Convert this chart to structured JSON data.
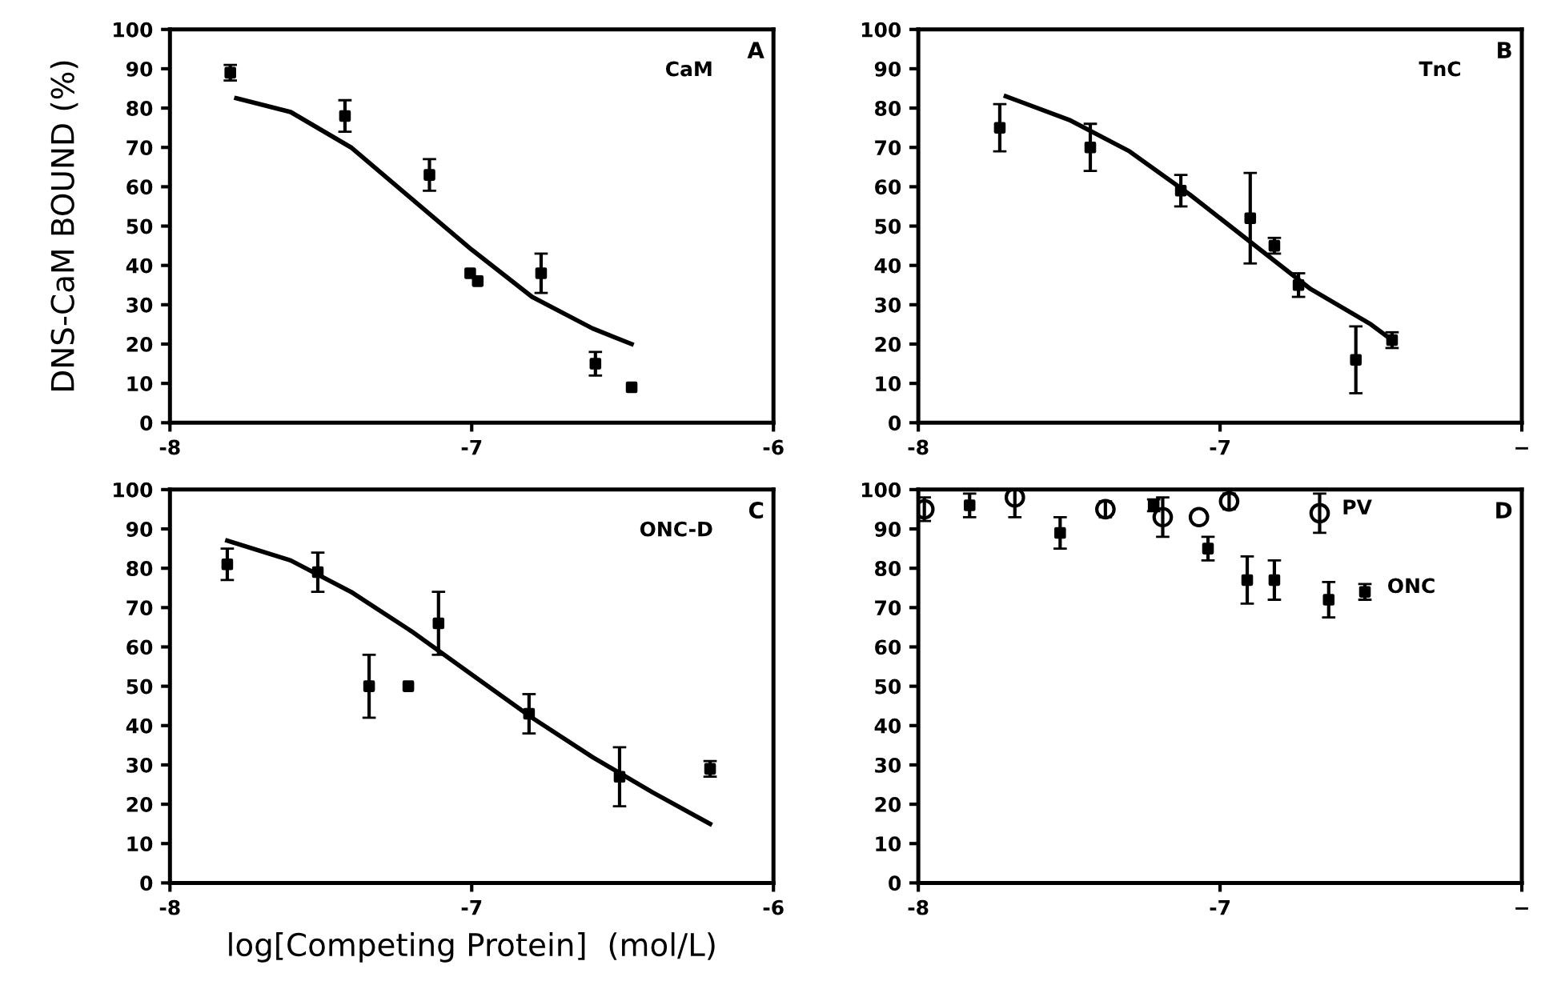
{
  "chart_data": [
    {
      "type": "scatter",
      "ylabel": "DNS-CaM BOUND (%)",
      "annotations": [
        "CaM",
        "A"
      ],
      "xlim": [
        -8,
        -6
      ],
      "xticks": [
        -8,
        -7,
        -6
      ],
      "ylim": [
        0,
        100
      ],
      "yticks": [
        0,
        10,
        20,
        30,
        40,
        50,
        60,
        70,
        80,
        90,
        100
      ],
      "grid": false,
      "legend": false,
      "series": [
        {
          "type": "scatter",
          "marker": "square",
          "color": "#000000",
          "x": [
            -7.8,
            -7.42,
            -7.14,
            -7.005,
            -6.98,
            -6.77,
            -6.59,
            -6.47
          ],
          "values": [
            89,
            78,
            63,
            38,
            36,
            38,
            15,
            9
          ],
          "errors": [
            2,
            4,
            4,
            null,
            null,
            5,
            3,
            null
          ]
        },
        {
          "type": "line",
          "marker": "none",
          "line_style": "solid",
          "color": "#000000",
          "x": [
            -7.78,
            -7.6,
            -7.4,
            -7.2,
            -7.0,
            -6.8,
            -6.6,
            -6.47
          ],
          "values": [
            82.5,
            79,
            70,
            57,
            44,
            32,
            24,
            20
          ]
        }
      ]
    },
    {
      "type": "scatter",
      "xlabel": "log[Competing Protein]  (mol/L)",
      "annotations": [
        "ONC-D",
        "C"
      ],
      "xlim": [
        -8,
        -6
      ],
      "xticks": [
        -8,
        -7,
        -6
      ],
      "ylim": [
        0,
        100
      ],
      "yticks": [
        0,
        10,
        20,
        30,
        40,
        50,
        60,
        70,
        80,
        90,
        100
      ],
      "grid": false,
      "legend": false,
      "series": [
        {
          "type": "scatter",
          "marker": "square",
          "color": "#000000",
          "x": [
            -7.81,
            -7.51,
            -7.34,
            -7.21,
            -7.11,
            -6.81,
            -6.51,
            -6.21
          ],
          "values": [
            81,
            79,
            50,
            50,
            66,
            43,
            27,
            29
          ],
          "errors": [
            4,
            5,
            8,
            null,
            8,
            5,
            7.5,
            2
          ]
        },
        {
          "type": "line",
          "marker": "none",
          "line_style": "solid",
          "color": "#000000",
          "x": [
            -7.81,
            -7.6,
            -7.4,
            -7.2,
            -7.0,
            -6.8,
            -6.6,
            -6.4,
            -6.21
          ],
          "values": [
            87,
            82,
            74,
            64,
            53,
            42,
            32,
            23,
            15
          ]
        }
      ]
    },
    {
      "type": "scatter",
      "annotations": [
        "TnC",
        "B"
      ],
      "xlim": [
        -8,
        -6
      ],
      "xticks": [
        -8,
        -7,
        {
          "value": -6,
          "label": "−"
        }
      ],
      "ylim": [
        0,
        100
      ],
      "yticks": [
        0,
        10,
        20,
        30,
        40,
        50,
        60,
        70,
        80,
        90,
        100
      ],
      "grid": false,
      "legend": false,
      "series": [
        {
          "type": "scatter",
          "marker": "square",
          "color": "#000000",
          "x": [
            -7.73,
            -7.43,
            -7.13,
            -6.9,
            -6.82,
            -6.74,
            -6.55,
            -6.43
          ],
          "values": [
            75,
            70,
            59,
            52,
            45,
            35,
            16,
            21
          ],
          "errors": [
            6,
            6,
            4,
            11.5,
            2,
            3,
            8.5,
            2
          ]
        },
        {
          "type": "line",
          "marker": "none",
          "line_style": "solid",
          "color": "#000000",
          "x": [
            -7.71,
            -7.5,
            -7.3,
            -7.1,
            -6.9,
            -6.7,
            -6.5,
            -6.43
          ],
          "values": [
            83,
            77,
            69,
            58,
            46,
            34,
            25,
            21
          ]
        }
      ]
    },
    {
      "type": "scatter",
      "annotations": [
        "D"
      ],
      "xlim": [
        -8,
        -6
      ],
      "xticks": [
        -8,
        -7,
        {
          "value": -6,
          "label": "−"
        }
      ],
      "ylim": [
        0,
        100
      ],
      "yticks": [
        0,
        10,
        20,
        30,
        40,
        50,
        60,
        70,
        80,
        90,
        100
      ],
      "grid": false,
      "legend": false,
      "series": [
        {
          "type": "scatter",
          "name": "PV",
          "marker": "circle",
          "color": "#000000",
          "x": [
            -7.98,
            -7.68,
            -7.38,
            -7.19,
            -7.07,
            -6.97,
            -6.67
          ],
          "values": [
            95,
            98,
            95,
            93,
            93,
            97,
            94
          ],
          "errors": [
            3,
            5,
            2,
            5,
            null,
            2,
            5
          ]
        },
        {
          "type": "scatter",
          "name": "ONC",
          "marker": "square",
          "color": "#000000",
          "x": [
            -7.83,
            -7.53,
            -7.22,
            -7.04,
            -6.91,
            -6.82,
            -6.64,
            -6.52
          ],
          "values": [
            96,
            89,
            96,
            85,
            77,
            77,
            72,
            74
          ],
          "errors": [
            3,
            4,
            1.5,
            3,
            6,
            5,
            4.5,
            2
          ]
        }
      ]
    }
  ]
}
